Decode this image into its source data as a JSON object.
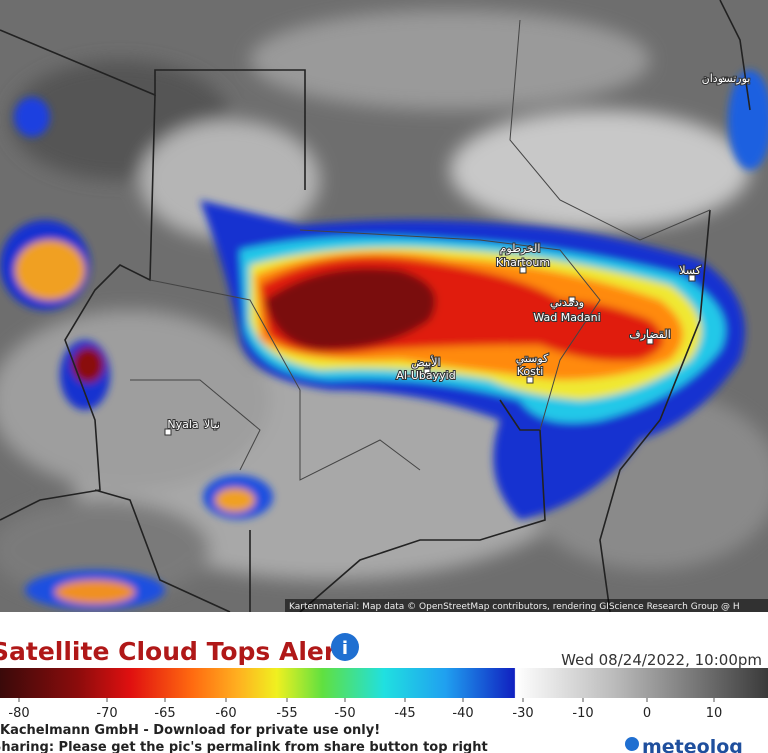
{
  "map": {
    "labels": [
      {
        "latin": "Khartoum",
        "arabic": "الخرطوم"
      },
      {
        "latin": "Wad Madani",
        "arabic": "ودمدني"
      },
      {
        "latin": "Kosti",
        "arabic": "كوستي"
      },
      {
        "latin": "Al-Ubayyid",
        "arabic": "الأبيض"
      },
      {
        "latin": "Nyala",
        "arabic": "نيالا"
      },
      {
        "latin": null,
        "arabic": "القضارف"
      },
      {
        "latin": null,
        "arabic": "كسلا"
      },
      {
        "latin": null,
        "arabic": "بورتسودان"
      }
    ],
    "attribution": "Kartenmaterial: Map data © OpenStreetMap contributors, rendering GIScience Research Group @ H"
  },
  "legend": {
    "title": "Satellite Cloud Tops Alert",
    "timestamp": "Wed 08/24/2022, 10:00pm",
    "ticks": [
      -80,
      -70,
      -65,
      -60,
      -55,
      -50,
      -45,
      -40,
      -30,
      -10,
      0,
      10
    ]
  },
  "footer": {
    "lines": [
      "Kachelmann GmbH - Download for private use only!",
      "Sharing: Please get the pic's permalink from share button top right"
    ],
    "logo": "meteolog"
  }
}
